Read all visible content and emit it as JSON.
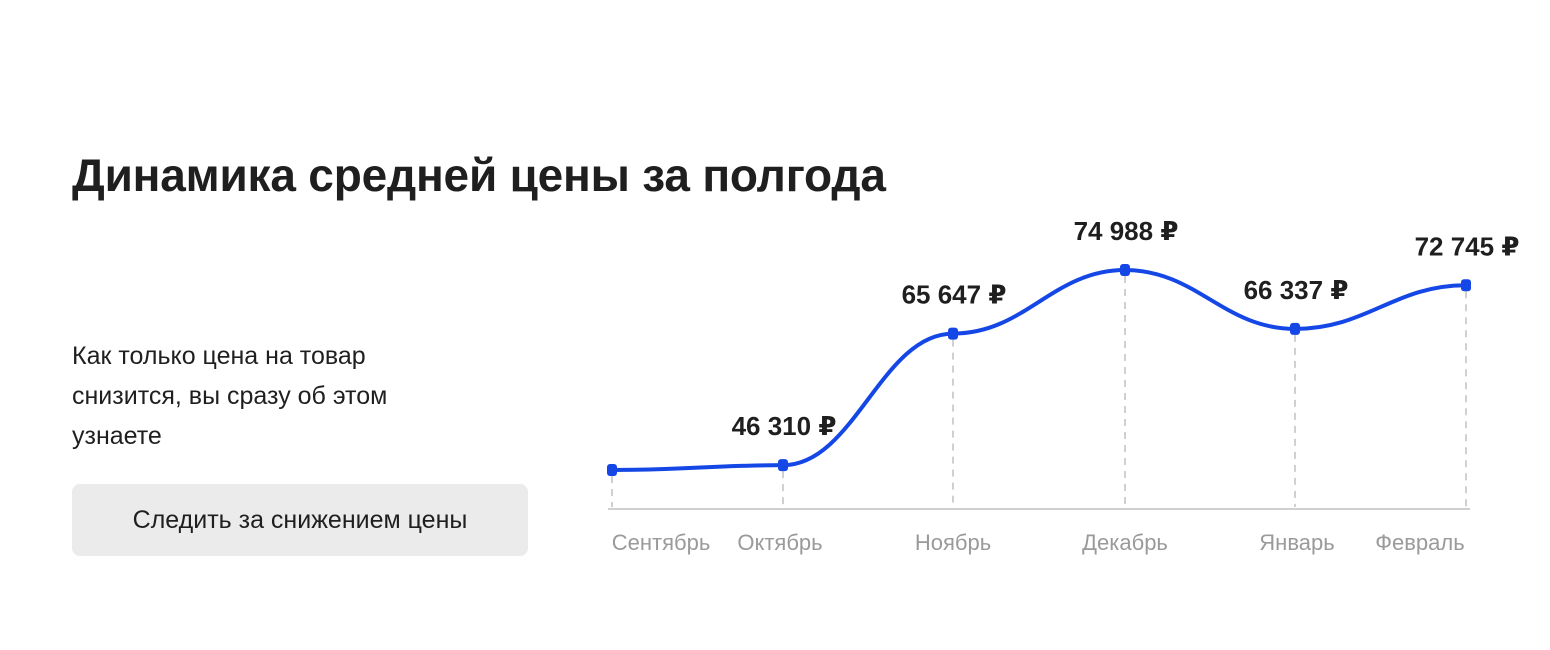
{
  "header": {
    "title": "Динамика средней цены за полгода"
  },
  "info": {
    "text": "Как только цена на товар снизится, вы сразу об этом узнаете"
  },
  "actions": {
    "follow_label": "Следить за снижением цены"
  },
  "colors": {
    "line": "#1447e6",
    "point": "#1447e6",
    "guides": "#d0d0d0",
    "axis": "#cfcfcf"
  },
  "chart_data": {
    "type": "line",
    "categories": [
      "Сентябрь",
      "Октябрь",
      "Ноябрь",
      "Декабрь",
      "Январь",
      "Февраль"
    ],
    "values": [
      45600,
      46310,
      65647,
      74988,
      66337,
      72745
    ],
    "value_labels": [
      "",
      "46 310 ₽",
      "65 647 ₽",
      "74 988 ₽",
      "66 337 ₽",
      "72 745 ₽"
    ],
    "ylim": [
      40000,
      80000
    ],
    "grid": false,
    "currency": "₽"
  }
}
